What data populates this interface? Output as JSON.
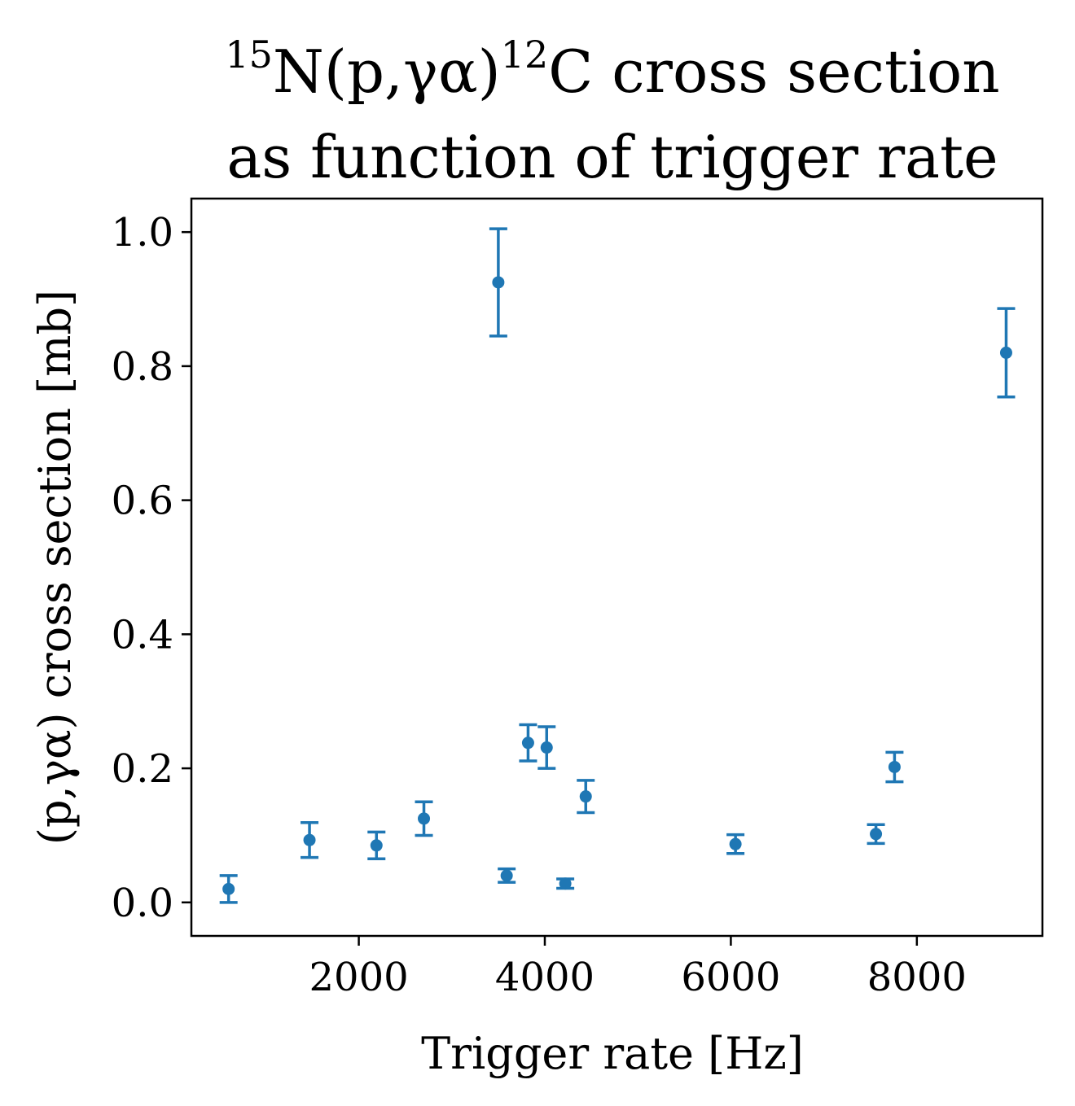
{
  "chart_data": {
    "type": "scatter",
    "title_line1_sup1": "15",
    "title_line1_main": "N(p,γα)",
    "title_line1_sup2": "12",
    "title_line1_rest": "C cross section",
    "title_line2": "as function of trigger rate",
    "xlabel": "Trigger rate [Hz]",
    "ylabel": "(p,γα) cross section [mb]",
    "xlim": [
      200,
      9350
    ],
    "ylim": [
      -0.05,
      1.05
    ],
    "xticks": [
      2000,
      4000,
      6000,
      8000
    ],
    "xtick_labels": [
      "2000",
      "4000",
      "6000",
      "8000"
    ],
    "yticks": [
      0.0,
      0.2,
      0.4,
      0.6,
      0.8,
      1.0
    ],
    "ytick_labels": [
      "0.0",
      "0.2",
      "0.4",
      "0.6",
      "0.8",
      "1.0"
    ],
    "grid": false,
    "series": [
      {
        "color": "#1f77b4",
        "points": [
          {
            "x": 600,
            "y": 0.02,
            "err": 0.02
          },
          {
            "x": 1470,
            "y": 0.093,
            "err": 0.026
          },
          {
            "x": 2190,
            "y": 0.085,
            "err": 0.02
          },
          {
            "x": 2700,
            "y": 0.125,
            "err": 0.025
          },
          {
            "x": 3500,
            "y": 0.925,
            "err": 0.08
          },
          {
            "x": 3590,
            "y": 0.04,
            "err": 0.01
          },
          {
            "x": 3820,
            "y": 0.238,
            "err": 0.027
          },
          {
            "x": 4020,
            "y": 0.231,
            "err": 0.031
          },
          {
            "x": 4220,
            "y": 0.028,
            "err": 0.007
          },
          {
            "x": 4440,
            "y": 0.158,
            "err": 0.024
          },
          {
            "x": 6050,
            "y": 0.087,
            "err": 0.014
          },
          {
            "x": 7560,
            "y": 0.102,
            "err": 0.014
          },
          {
            "x": 7760,
            "y": 0.202,
            "err": 0.022
          },
          {
            "x": 8960,
            "y": 0.82,
            "err": 0.066
          }
        ]
      }
    ]
  }
}
